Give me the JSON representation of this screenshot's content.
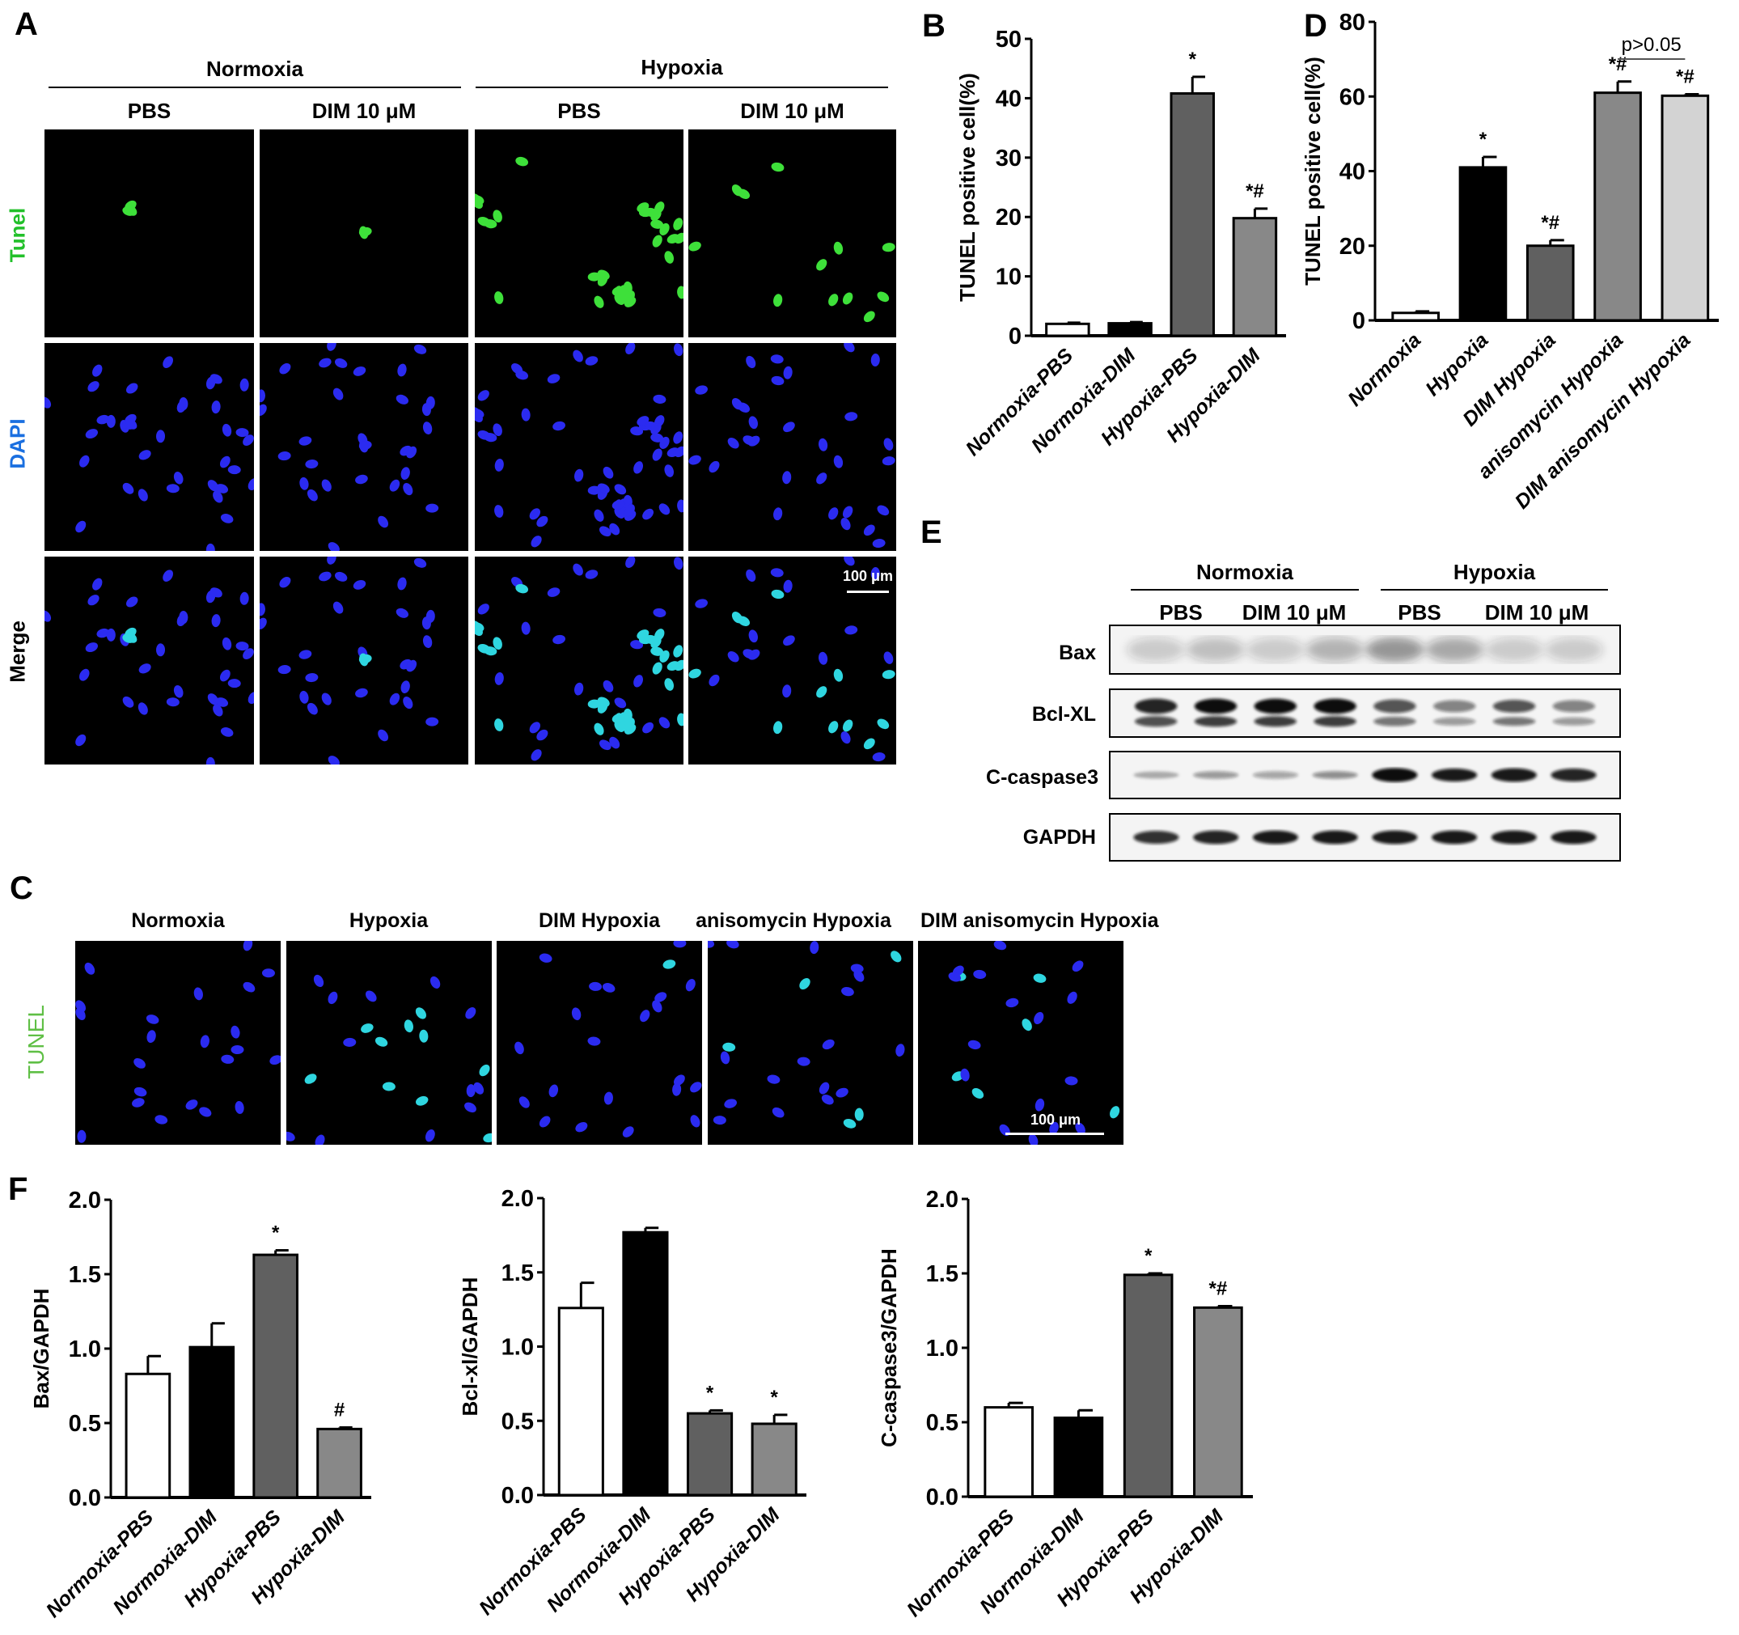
{
  "panel_labels": {
    "A": "A",
    "B": "B",
    "C": "C",
    "D": "D",
    "E": "E",
    "F": "F"
  },
  "panel_a": {
    "groups": [
      "Normoxia",
      "Hypoxia"
    ],
    "conditions": [
      "PBS",
      "DIM 10 μM",
      "PBS",
      "DIM 10 μM"
    ],
    "rows": [
      "Tunel",
      "DAPI",
      "Merge"
    ],
    "row_colors": [
      "#22c02a",
      "#1a6fe0",
      "#000000"
    ],
    "scale_bar": "100 μm"
  },
  "panel_c": {
    "conditions": [
      "Normoxia",
      "Hypoxia",
      "DIM Hypoxia",
      "anisomycin Hypoxia",
      "DIM anisomycin Hypoxia"
    ],
    "row_label": "TUNEL",
    "row_color": "#5fbf45",
    "scale_bar": "100 μm"
  },
  "panel_e": {
    "groups": [
      "Normoxia",
      "Hypoxia"
    ],
    "conditions": [
      "PBS",
      "DIM 10 μM",
      "PBS",
      "DIM 10 μM"
    ],
    "proteins": [
      "Bax",
      "Bcl-XL",
      "C-caspase3",
      "GAPDH"
    ]
  },
  "chart_data": [
    {
      "panel": "B",
      "type": "bar",
      "categories": [
        "Normoxia-PBS",
        "Normoxia-DIM",
        "Hypoxia-PBS",
        "Hypoxia-DIM"
      ],
      "values": [
        2.0,
        2.1,
        40.8,
        19.8
      ],
      "errors": [
        0.2,
        0.2,
        2.8,
        1.6
      ],
      "colors": [
        "#ffffff",
        "#000000",
        "#606060",
        "#888888"
      ],
      "annotations": [
        "",
        "",
        "*",
        "*#"
      ],
      "ylabel": "TUNEL positive cell(%)",
      "ylim": [
        0,
        50
      ],
      "yticks": [
        "0",
        "10",
        "20",
        "30",
        "40",
        "50"
      ]
    },
    {
      "panel": "D",
      "type": "bar",
      "categories": [
        "Normoxia",
        "Hypoxia",
        "DIM Hypoxia",
        "anisomycin Hypoxia",
        "DIM anisomycin Hypoxia"
      ],
      "values": [
        2.0,
        41.0,
        20.0,
        61.0,
        60.2
      ],
      "errors": [
        0.4,
        2.8,
        1.5,
        3.0,
        0.4
      ],
      "colors": [
        "#ffffff",
        "#000000",
        "#606060",
        "#888888",
        "#d3d3d3"
      ],
      "annotations": [
        "",
        "*",
        "*#",
        "*#",
        "*#"
      ],
      "ylabel": "TUNEL positive cell(%)",
      "ylim": [
        0,
        80
      ],
      "yticks": [
        "0",
        "20",
        "40",
        "60",
        "80"
      ],
      "bracket": {
        "from": 3,
        "to": 4,
        "label": "p>0.05"
      }
    },
    {
      "panel": "F1",
      "type": "bar",
      "categories": [
        "Normoxia-PBS",
        "Normoxia-DIM",
        "Hypoxia-PBS",
        "Hypoxia-DIM"
      ],
      "values": [
        0.83,
        1.01,
        1.63,
        0.46
      ],
      "errors": [
        0.12,
        0.16,
        0.03,
        0.01
      ],
      "colors": [
        "#ffffff",
        "#000000",
        "#606060",
        "#888888"
      ],
      "annotations": [
        "",
        "",
        "*",
        "#"
      ],
      "ylabel": "Bax/GAPDH",
      "ylim": [
        0,
        2.0
      ],
      "yticks": [
        "0.0",
        "0.5",
        "1.0",
        "1.5",
        "2.0"
      ]
    },
    {
      "panel": "F2",
      "type": "bar",
      "categories": [
        "Normoxia-PBS",
        "Normoxia-DIM",
        "Hypoxia-PBS",
        "Hypoxia-DIM"
      ],
      "values": [
        1.26,
        1.77,
        0.55,
        0.48
      ],
      "errors": [
        0.17,
        0.03,
        0.02,
        0.06
      ],
      "colors": [
        "#ffffff",
        "#000000",
        "#606060",
        "#888888"
      ],
      "annotations": [
        "",
        "",
        "*",
        "*"
      ],
      "ylabel": "Bcl-xl/GAPDH",
      "ylim": [
        0,
        2.0
      ],
      "yticks": [
        "0.0",
        "0.5",
        "1.0",
        "1.5",
        "2.0"
      ]
    },
    {
      "panel": "F3",
      "type": "bar",
      "categories": [
        "Normoxia-PBS",
        "Normoxia-DIM",
        "Hypoxia-PBS",
        "Hypoxia-DIM"
      ],
      "values": [
        0.6,
        0.53,
        1.49,
        1.27
      ],
      "errors": [
        0.03,
        0.05,
        0.01,
        0.01
      ],
      "colors": [
        "#ffffff",
        "#000000",
        "#606060",
        "#888888"
      ],
      "annotations": [
        "",
        "",
        "*",
        "*#"
      ],
      "ylabel": "C-caspase3/GAPDH",
      "ylim": [
        0,
        2.0
      ],
      "yticks": [
        "0.0",
        "0.5",
        "1.0",
        "1.5",
        "2.0"
      ]
    }
  ]
}
